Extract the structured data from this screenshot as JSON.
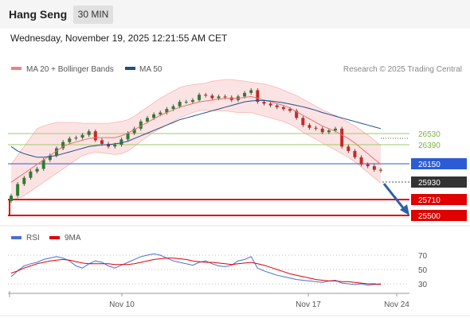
{
  "header": {
    "title": "Hang Seng",
    "timeframe": "30 MIN"
  },
  "datetime": "Wednesday, November 19, 2025 12:21:55 AM CET",
  "chart_data": [
    {
      "type": "candlestick",
      "legend": [
        {
          "name": "MA 20 + Bollinger Bands",
          "color": "#f08080"
        },
        {
          "name": "MA 50",
          "color": "#1f4e8c"
        }
      ],
      "watermark": "Research © 2025 Trading Central",
      "x_tick_labels": [
        "Nov 10",
        "Nov 17",
        "Nov 24"
      ],
      "price_range": [
        25420,
        26950
      ],
      "levels": [
        {
          "label": "26530",
          "kind": "resistance",
          "color": "#9ccc65"
        },
        {
          "label": "26390",
          "kind": "resistance",
          "color": "#9ccc65"
        },
        {
          "label": "26150",
          "kind": "pivot",
          "color": "#2b5cd6"
        },
        {
          "label": "25930",
          "kind": "last",
          "color": "#333333"
        },
        {
          "label": "25710",
          "kind": "target",
          "color": "#e00000"
        },
        {
          "label": "25500",
          "kind": "target",
          "color": "#e00000"
        }
      ],
      "close": [
        25650,
        25780,
        25850,
        25920,
        25950,
        26050,
        26100,
        26180,
        26250,
        26290,
        26300,
        26330,
        26370,
        26270,
        26230,
        26200,
        26220,
        26280,
        26350,
        26400,
        26480,
        26520,
        26560,
        26580,
        26620,
        26650,
        26700,
        26700,
        26720,
        26780,
        26770,
        26740,
        26760,
        26750,
        26720,
        26760,
        26800,
        26830,
        26700,
        26680,
        26660,
        26640,
        26620,
        26600,
        26520,
        26440,
        26410,
        26400,
        26360,
        26380,
        26400,
        26200,
        26150,
        26080,
        26000,
        25980,
        25940,
        25930
      ],
      "ma20": [
        25800,
        25850,
        25900,
        25950,
        26000,
        26050,
        26100,
        26150,
        26200,
        26230,
        26250,
        26270,
        26290,
        26300,
        26300,
        26300,
        26300,
        26320,
        26350,
        26390,
        26430,
        26470,
        26510,
        26550,
        26580,
        26610,
        26640,
        26660,
        26680,
        26700,
        26710,
        26720,
        26730,
        26740,
        26740,
        26740,
        26750,
        26760,
        26740,
        26720,
        26700,
        26680,
        26660,
        26630,
        26590,
        26550,
        26510,
        26470,
        26430,
        26400,
        26370,
        26330,
        26290,
        26240,
        26180,
        26120,
        26060,
        26000
      ],
      "bb_upper": [
        26000,
        26100,
        26200,
        26300,
        26400,
        26430,
        26450,
        26470,
        26470,
        26470,
        26470,
        26460,
        26460,
        26460,
        26460,
        26460,
        26470,
        26480,
        26500,
        26540,
        26590,
        26640,
        26690,
        26740,
        26780,
        26820,
        26860,
        26880,
        26890,
        26900,
        26910,
        26930,
        26940,
        26950,
        26950,
        26940,
        26930,
        26920,
        26910,
        26900,
        26880,
        26860,
        26830,
        26800,
        26770,
        26730,
        26690,
        26650,
        26610,
        26580,
        26550,
        26510,
        26470,
        26430,
        26380,
        26330,
        26270,
        26210
      ],
      "bb_lower": [
        25600,
        25620,
        25650,
        25700,
        25750,
        25800,
        25850,
        25900,
        25950,
        26000,
        26050,
        26100,
        26120,
        26140,
        26130,
        26120,
        26110,
        26120,
        26150,
        26200,
        26260,
        26310,
        26360,
        26400,
        26440,
        26480,
        26520,
        26550,
        26580,
        26600,
        26610,
        26600,
        26600,
        26600,
        26590,
        26580,
        26580,
        26580,
        26560,
        26540,
        26520,
        26500,
        26480,
        26450,
        26410,
        26360,
        26320,
        26280,
        26240,
        26200,
        26160,
        26120,
        26080,
        26030,
        25970,
        25910,
        25850,
        25790
      ],
      "ma50": [
        26200,
        26150,
        26120,
        26100,
        26080,
        26080,
        26090,
        26100,
        26120,
        26140,
        26160,
        26180,
        26200,
        26210,
        26220,
        26220,
        26230,
        26240,
        26260,
        26290,
        26320,
        26350,
        26380,
        26410,
        26440,
        26470,
        26500,
        26520,
        26540,
        26560,
        26580,
        26600,
        26620,
        26640,
        26660,
        26680,
        26700,
        26710,
        26715,
        26715,
        26710,
        26700,
        26690,
        26675,
        26660,
        26645,
        26625,
        26605,
        26580,
        26560,
        26540,
        26520,
        26500,
        26480,
        26460,
        26440,
        26420,
        26400
      ]
    },
    {
      "type": "line",
      "legend": [
        {
          "name": "RSI",
          "color": "#4a6fd8"
        },
        {
          "name": "9MA",
          "color": "#e00000"
        }
      ],
      "y_ticks": [
        70,
        50,
        30
      ],
      "y_range": [
        20,
        80
      ],
      "rsi": [
        40,
        48,
        55,
        58,
        60,
        64,
        66,
        68,
        66,
        62,
        55,
        52,
        58,
        62,
        60,
        55,
        52,
        56,
        60,
        64,
        68,
        70,
        72,
        70,
        66,
        62,
        60,
        58,
        56,
        60,
        62,
        58,
        55,
        54,
        56,
        62,
        64,
        68,
        52,
        48,
        45,
        42,
        40,
        38,
        36,
        35,
        34,
        33,
        32,
        34,
        35,
        31,
        30,
        29,
        30,
        28,
        29,
        30
      ],
      "ma9": [
        45,
        48,
        52,
        55,
        58,
        60,
        62,
        63,
        64,
        63,
        61,
        59,
        58,
        58,
        58,
        58,
        57,
        57,
        57,
        58,
        60,
        62,
        64,
        65,
        66,
        66,
        65,
        64,
        62,
        61,
        60,
        60,
        59,
        58,
        57,
        58,
        59,
        60,
        58,
        56,
        53,
        50,
        47,
        44,
        42,
        40,
        38,
        36,
        35,
        34,
        34,
        33,
        33,
        32,
        31,
        30,
        30,
        29
      ]
    }
  ]
}
